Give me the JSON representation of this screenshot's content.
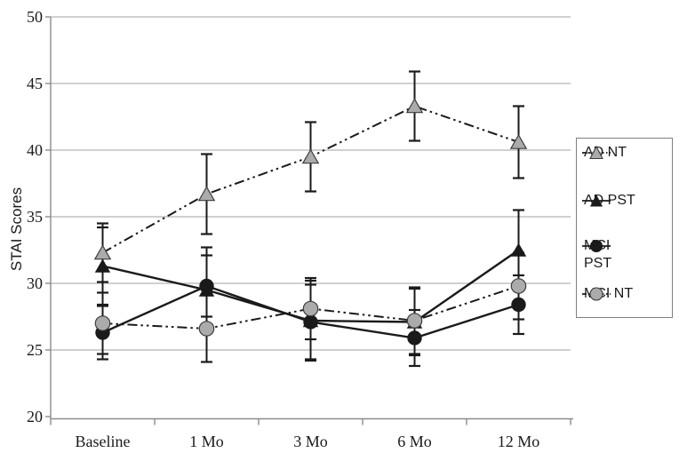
{
  "chart_data": {
    "type": "line",
    "title": "",
    "xlabel": "",
    "ylabel": "STAI Scores",
    "categories": [
      "Baseline",
      "1 Mo",
      "3 Mo",
      "6 Mo",
      "12 Mo"
    ],
    "ylim": [
      20,
      50
    ],
    "yticks": [
      20,
      25,
      30,
      35,
      40,
      45,
      50
    ],
    "grid": "horizontal",
    "legend_position": "right",
    "error_bars": true,
    "series": [
      {
        "name": "AD NT",
        "marker": "triangle",
        "marker_color": "gray",
        "line_style": "dash-dot-dot",
        "values": [
          32.3,
          36.7,
          39.5,
          43.3,
          40.6
        ],
        "error": [
          2.2,
          3.0,
          2.6,
          2.6,
          2.7
        ]
      },
      {
        "name": "AD PST",
        "marker": "triangle",
        "marker_color": "black",
        "line_style": "solid",
        "values": [
          31.3,
          29.5,
          27.2,
          27.1,
          32.5
        ],
        "error": [
          2.9,
          3.2,
          3.0,
          2.5,
          3.0
        ]
      },
      {
        "name": "MCI PST",
        "marker": "circle",
        "marker_color": "black",
        "line_style": "solid",
        "values": [
          26.3,
          29.8,
          27.1,
          25.9,
          28.4
        ],
        "error": [
          2.0,
          2.3,
          2.8,
          2.1,
          2.2
        ]
      },
      {
        "name": "MCI NT",
        "marker": "circle",
        "marker_color": "gray",
        "line_style": "dash-dot-dot",
        "values": [
          27.0,
          26.6,
          28.1,
          27.2,
          29.8
        ],
        "error": [
          2.3,
          2.5,
          2.3,
          2.5,
          2.5
        ]
      }
    ]
  },
  "legend": {
    "items": [
      {
        "label": "AD NT"
      },
      {
        "label": "AD PST"
      },
      {
        "label": "MCI\nPST"
      },
      {
        "label": "MCI NT"
      }
    ]
  },
  "colors": {
    "line_black": "#1a1a1a",
    "marker_gray": "#ababab",
    "marker_gray_stroke": "#3d3d3d",
    "gridline": "#b5b5b5",
    "axis": "#8c8c8c",
    "text": "#1a1a1a",
    "background": "#ffffff"
  }
}
